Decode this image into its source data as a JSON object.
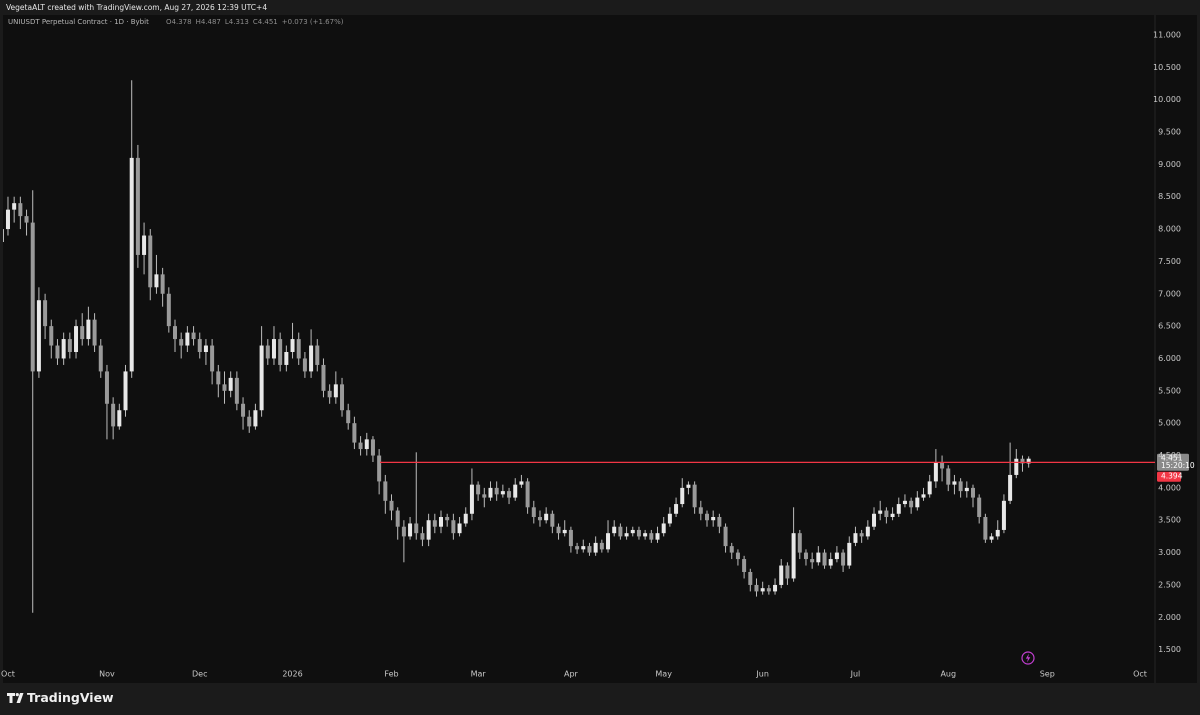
{
  "header": "VegetaALT created with TradingView.com, Aug 27, 2026 12:39 UTC+4",
  "footer": {
    "logo": "TradingView"
  },
  "chart_data": {
    "type": "candlestick",
    "symbol": "UNIUSDT Perpetual Contract · 1D · Bybit",
    "legend": [
      "O4.378",
      "H4.487",
      "L4.313",
      "C4.451",
      "+0.073 (+1.67%)"
    ],
    "up_color": "#e8e8e8",
    "down_color": "#9a9a9a",
    "wick_color": "#bdbdbd",
    "level": 4.394,
    "level_color": "#f23645",
    "last_price": 4.451,
    "countdown": "15:20:10",
    "ylim": [
      1.0,
      11.2
    ],
    "yticks": [
      {
        "value": 1.5,
        "label": "1.500"
      },
      {
        "value": 2,
        "label": "2.000"
      },
      {
        "value": 2.5,
        "label": "2.500"
      },
      {
        "value": 3,
        "label": "3.000"
      },
      {
        "value": 3.5,
        "label": "3.500"
      },
      {
        "value": 4,
        "label": "4.000"
      },
      {
        "value": 4.5,
        "label": "4.500"
      },
      {
        "value": 5,
        "label": "5.000"
      },
      {
        "value": 5.5,
        "label": "5.500"
      },
      {
        "value": 6,
        "label": "6.000"
      },
      {
        "value": 6.5,
        "label": "6.500"
      },
      {
        "value": 7,
        "label": "7.000"
      },
      {
        "value": 7.5,
        "label": "7.500"
      },
      {
        "value": 8,
        "label": "8.000"
      },
      {
        "value": 8.5,
        "label": "8.500"
      },
      {
        "value": 9,
        "label": "9.000"
      },
      {
        "value": 9.5,
        "label": "9.500"
      },
      {
        "value": 10,
        "label": "10.000"
      },
      {
        "value": 10.5,
        "label": "10.500"
      },
      {
        "value": 11,
        "label": "11.000"
      }
    ],
    "categories": [
      null,
      "Oct",
      null,
      null,
      null,
      null,
      null,
      null,
      null,
      null,
      null,
      null,
      null,
      null,
      null,
      null,
      null,
      "Nov",
      null,
      null,
      null,
      null,
      null,
      null,
      null,
      null,
      null,
      null,
      null,
      null,
      null,
      null,
      "Dec",
      null,
      null,
      null,
      null,
      null,
      null,
      null,
      null,
      null,
      null,
      null,
      null,
      null,
      null,
      "2026",
      null,
      null,
      null,
      null,
      null,
      null,
      null,
      null,
      null,
      null,
      null,
      null,
      null,
      null,
      null,
      "Feb",
      null,
      null,
      null,
      null,
      null,
      null,
      null,
      null,
      null,
      null,
      null,
      null,
      null,
      "Mar",
      null,
      null,
      null,
      null,
      null,
      null,
      null,
      null,
      null,
      null,
      null,
      null,
      null,
      null,
      "Apr",
      null,
      null,
      null,
      null,
      null,
      null,
      null,
      null,
      null,
      null,
      null,
      null,
      null,
      null,
      "May",
      null,
      null,
      null,
      null,
      null,
      null,
      null,
      null,
      null,
      null,
      null,
      null,
      null,
      null,
      null,
      "Jun",
      null,
      null,
      null,
      null,
      null,
      null,
      null,
      null,
      null,
      null,
      null,
      null,
      null,
      null,
      "Jul",
      null,
      null,
      null,
      null,
      null,
      null,
      null,
      null,
      null,
      null,
      null,
      null,
      null,
      null,
      "Aug",
      null,
      null,
      null,
      null,
      null,
      null,
      null,
      null,
      null,
      null,
      null,
      null,
      null,
      null,
      null,
      "Sep",
      null,
      null,
      null,
      null,
      null,
      null,
      null,
      null,
      null,
      null,
      null,
      null,
      null,
      null,
      "Oct",
      null
    ],
    "open": [
      7.8,
      8.0,
      8.3,
      8.4,
      8.2,
      8.1,
      5.8,
      6.9,
      6.5,
      6.2,
      6.0,
      6.3,
      6.1,
      6.5,
      6.3,
      6.6,
      6.2,
      5.8,
      5.3,
      4.95,
      5.2,
      5.8,
      9.1,
      7.6,
      7.9,
      7.1,
      7.3,
      7.0,
      6.5,
      6.3,
      6.2,
      6.4,
      6.3,
      6.1,
      6.2,
      5.8,
      5.6,
      5.5,
      5.7,
      5.3,
      5.1,
      4.95,
      5.2,
      6.2,
      6.0,
      6.3,
      5.9,
      6.1,
      6.3,
      6.0,
      5.8,
      6.2,
      5.9,
      5.5,
      5.4,
      5.6,
      5.2,
      5.0,
      4.7,
      4.6,
      4.75,
      4.5,
      4.1,
      3.8,
      3.65,
      3.4,
      3.25,
      3.45,
      3.3,
      3.2,
      3.5,
      3.4,
      3.55,
      3.5,
      3.3,
      3.45,
      3.6,
      4.05,
      3.9,
      3.85,
      4.0,
      3.9,
      3.95,
      3.85,
      4.05,
      4.1,
      3.7,
      3.55,
      3.5,
      3.6,
      3.4,
      3.3,
      3.35,
      3.1,
      3.05,
      3.1,
      3.0,
      3.15,
      3.05,
      3.3,
      3.4,
      3.25,
      3.3,
      3.35,
      3.25,
      3.3,
      3.2,
      3.3,
      3.45,
      3.6,
      3.75,
      4.0,
      4.05,
      3.7,
      3.6,
      3.5,
      3.55,
      3.4,
      3.1,
      3.0,
      2.9,
      2.7,
      2.5,
      2.4,
      2.45,
      2.4,
      2.5,
      2.8,
      2.6,
      3.3,
      3.0,
      2.9,
      2.85,
      3.0,
      2.8,
      2.9,
      3.0,
      2.8,
      3.15,
      3.3,
      3.25,
      3.4,
      3.6,
      3.65,
      3.55,
      3.6,
      3.75,
      3.8,
      3.7,
      3.85,
      3.9,
      4.1,
      4.4,
      4.3,
      4.05,
      4.1,
      3.95,
      4.0,
      3.85,
      3.55,
      3.2,
      3.25,
      3.35,
      3.8,
      4.2,
      4.45,
      4.378,
      null,
      null,
      null,
      null,
      null,
      null,
      null,
      null,
      null,
      null,
      null,
      null,
      null,
      null,
      null,
      null,
      null,
      null,
      null
    ],
    "high": [
      8.5,
      8.5,
      8.5,
      8.5,
      8.3,
      8.6,
      7.1,
      7.0,
      6.6,
      6.3,
      6.4,
      6.4,
      6.6,
      6.7,
      6.8,
      6.7,
      6.3,
      5.9,
      5.4,
      5.3,
      5.9,
      10.3,
      9.3,
      8.1,
      8.0,
      7.6,
      7.4,
      7.1,
      6.6,
      6.4,
      6.5,
      6.5,
      6.4,
      6.3,
      6.3,
      5.9,
      5.8,
      5.8,
      5.8,
      5.4,
      5.2,
      5.3,
      6.5,
      6.3,
      6.5,
      6.4,
      6.2,
      6.55,
      6.4,
      6.1,
      6.45,
      6.3,
      6.0,
      5.6,
      5.8,
      5.7,
      5.3,
      5.1,
      4.8,
      4.85,
      4.8,
      4.6,
      4.2,
      3.9,
      3.7,
      3.5,
      3.55,
      4.55,
      3.4,
      3.6,
      3.6,
      3.65,
      3.6,
      3.6,
      3.55,
      3.7,
      4.3,
      4.1,
      4.0,
      4.1,
      4.1,
      4.05,
      4.0,
      4.15,
      4.2,
      4.15,
      3.8,
      3.65,
      3.7,
      3.65,
      3.45,
      3.5,
      3.4,
      3.15,
      3.2,
      3.15,
      3.25,
      3.2,
      3.5,
      3.5,
      3.45,
      3.4,
      3.4,
      3.4,
      3.35,
      3.35,
      3.4,
      3.55,
      3.7,
      3.85,
      4.15,
      4.1,
      4.1,
      3.8,
      3.65,
      3.65,
      3.6,
      3.45,
      3.15,
      3.05,
      2.95,
      2.75,
      2.6,
      2.55,
      2.5,
      2.6,
      2.9,
      2.85,
      3.7,
      3.35,
      3.05,
      3.0,
      3.1,
      3.05,
      3.0,
      3.1,
      3.05,
      3.25,
      3.4,
      3.35,
      3.5,
      3.7,
      3.8,
      3.7,
      3.7,
      3.85,
      3.9,
      3.85,
      3.95,
      4.0,
      4.2,
      4.6,
      4.5,
      4.35,
      4.2,
      4.15,
      4.1,
      4.05,
      3.9,
      3.6,
      3.3,
      3.5,
      3.9,
      4.7,
      4.6,
      4.5,
      4.487,
      null,
      null,
      null,
      null,
      null,
      null,
      null,
      null,
      null,
      null,
      null,
      null,
      null,
      null,
      null,
      null,
      null,
      null,
      null
    ],
    "low": [
      7.6,
      7.9,
      8.1,
      8.0,
      7.9,
      2.07,
      5.7,
      6.3,
      6.0,
      5.9,
      5.9,
      6.0,
      6.0,
      6.2,
      6.2,
      6.1,
      5.7,
      4.75,
      4.75,
      4.9,
      5.1,
      5.7,
      7.4,
      7.3,
      6.9,
      7.0,
      6.8,
      6.4,
      6.1,
      6.0,
      6.1,
      6.2,
      6.0,
      5.9,
      5.6,
      5.4,
      5.3,
      5.4,
      5.2,
      4.9,
      4.85,
      4.9,
      5.1,
      5.9,
      5.9,
      5.8,
      5.8,
      6.0,
      5.9,
      5.7,
      5.7,
      5.8,
      5.4,
      5.3,
      5.3,
      5.1,
      4.9,
      4.6,
      4.5,
      4.5,
      4.4,
      3.9,
      3.6,
      3.5,
      3.2,
      2.85,
      3.2,
      3.2,
      3.1,
      3.1,
      3.3,
      3.3,
      3.4,
      3.2,
      3.25,
      3.4,
      3.5,
      3.8,
      3.7,
      3.8,
      3.8,
      3.85,
      3.75,
      3.8,
      4.0,
      3.6,
      3.45,
      3.4,
      3.45,
      3.3,
      3.2,
      3.25,
      3.0,
      2.98,
      3.0,
      2.95,
      2.95,
      3.0,
      3.0,
      3.25,
      3.2,
      3.2,
      3.25,
      3.2,
      3.2,
      3.15,
      3.15,
      3.25,
      3.4,
      3.55,
      3.7,
      3.9,
      3.6,
      3.5,
      3.4,
      3.4,
      3.3,
      3.0,
      2.9,
      2.8,
      2.6,
      2.4,
      2.32,
      2.35,
      2.35,
      2.35,
      2.45,
      2.5,
      2.55,
      2.9,
      2.8,
      2.75,
      2.8,
      2.75,
      2.75,
      2.85,
      2.7,
      2.75,
      3.1,
      3.15,
      3.2,
      3.35,
      3.5,
      3.45,
      3.5,
      3.55,
      3.7,
      3.6,
      3.65,
      3.8,
      3.85,
      4.0,
      4.1,
      3.95,
      3.9,
      3.85,
      3.85,
      3.7,
      3.45,
      3.15,
      3.15,
      3.2,
      3.3,
      3.75,
      4.15,
      4.25,
      4.313,
      null,
      null,
      null,
      null,
      null,
      null,
      null,
      null,
      null,
      null,
      null,
      null,
      null,
      null,
      null,
      null,
      null,
      null,
      null
    ],
    "close": [
      8.0,
      8.3,
      8.4,
      8.2,
      8.1,
      5.8,
      6.9,
      6.5,
      6.2,
      6.0,
      6.3,
      6.1,
      6.5,
      6.3,
      6.6,
      6.2,
      5.8,
      5.3,
      4.95,
      5.2,
      5.8,
      9.1,
      7.6,
      7.9,
      7.1,
      7.3,
      7.0,
      6.5,
      6.3,
      6.2,
      6.4,
      6.3,
      6.1,
      6.2,
      5.8,
      5.6,
      5.5,
      5.7,
      5.3,
      5.1,
      4.95,
      5.2,
      6.2,
      6.0,
      6.3,
      5.9,
      6.1,
      6.3,
      6.0,
      5.8,
      6.2,
      5.9,
      5.5,
      5.4,
      5.6,
      5.2,
      5.0,
      4.7,
      4.6,
      4.75,
      4.5,
      4.1,
      3.8,
      3.65,
      3.4,
      3.25,
      3.45,
      3.3,
      3.2,
      3.5,
      3.4,
      3.55,
      3.5,
      3.3,
      3.45,
      3.6,
      4.05,
      3.9,
      3.85,
      4.0,
      3.9,
      3.95,
      3.85,
      4.05,
      4.1,
      3.7,
      3.55,
      3.5,
      3.6,
      3.4,
      3.3,
      3.35,
      3.1,
      3.05,
      3.1,
      3.0,
      3.15,
      3.05,
      3.3,
      3.4,
      3.25,
      3.3,
      3.35,
      3.25,
      3.3,
      3.2,
      3.3,
      3.45,
      3.6,
      3.75,
      4.0,
      4.05,
      3.7,
      3.6,
      3.5,
      3.55,
      3.4,
      3.1,
      3.0,
      2.9,
      2.7,
      2.5,
      2.4,
      2.45,
      2.4,
      2.5,
      2.8,
      2.6,
      3.3,
      3.0,
      2.9,
      2.85,
      3.0,
      2.8,
      2.9,
      3.0,
      2.8,
      3.15,
      3.3,
      3.25,
      3.4,
      3.6,
      3.65,
      3.55,
      3.6,
      3.75,
      3.8,
      3.7,
      3.85,
      3.9,
      4.1,
      4.4,
      4.3,
      4.05,
      4.1,
      3.95,
      4.0,
      3.85,
      3.55,
      3.2,
      3.25,
      3.35,
      3.8,
      4.2,
      4.45,
      4.378,
      4.451,
      null,
      null,
      null,
      null,
      null,
      null,
      null,
      null,
      null,
      null,
      null,
      null,
      null,
      null,
      null,
      null,
      null,
      null,
      null
    ]
  }
}
